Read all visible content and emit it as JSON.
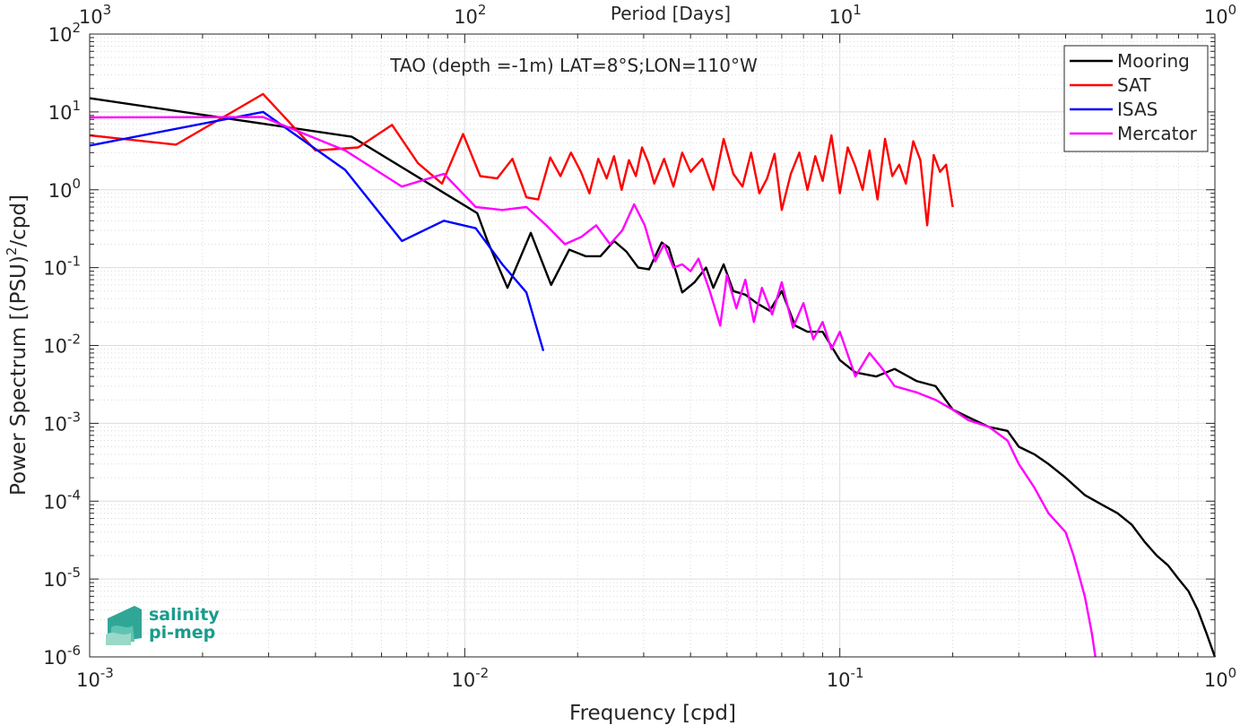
{
  "chart_data": {
    "type": "line",
    "title": "TAO (depth =-1m) LAT=8°S;LON=110°W",
    "xlabel": "Frequency [cpd]",
    "ylabel": "Power Spectrum [(PSU)^2/cpd]",
    "ylabel_main": "Power Spectrum [(PSU)",
    "ylabel_sup": "2",
    "ylabel_tail": "/cpd]",
    "top_xlabel": "Period [Days]",
    "xscale": "log",
    "yscale": "log",
    "xlim": [
      0.001,
      1
    ],
    "ylim": [
      1e-06,
      100
    ],
    "grid": true,
    "legend_position": "top-right",
    "x_ticks": [
      {
        "value": 0.001,
        "base": "10",
        "exp": "-3"
      },
      {
        "value": 0.01,
        "base": "10",
        "exp": "-2"
      },
      {
        "value": 0.1,
        "base": "10",
        "exp": "-1"
      },
      {
        "value": 1,
        "base": "10",
        "exp": "0"
      }
    ],
    "top_ticks": [
      {
        "value": 0.001,
        "base": "10",
        "exp": "3"
      },
      {
        "value": 0.01,
        "base": "10",
        "exp": "2"
      },
      {
        "value": 0.1,
        "base": "10",
        "exp": "1"
      },
      {
        "value": 1,
        "base": "10",
        "exp": "0"
      }
    ],
    "y_ticks": [
      {
        "value": 100,
        "base": "10",
        "exp": "2"
      },
      {
        "value": 10,
        "base": "10",
        "exp": "1"
      },
      {
        "value": 1,
        "base": "10",
        "exp": "0"
      },
      {
        "value": 0.1,
        "base": "10",
        "exp": "-1"
      },
      {
        "value": 0.01,
        "base": "10",
        "exp": "-2"
      },
      {
        "value": 0.001,
        "base": "10",
        "exp": "-3"
      },
      {
        "value": 0.0001,
        "base": "10",
        "exp": "-4"
      },
      {
        "value": 1e-05,
        "base": "10",
        "exp": "-5"
      },
      {
        "value": 1e-06,
        "base": "10",
        "exp": "-6"
      }
    ],
    "series": [
      {
        "name": "Mooring",
        "color": "#000000",
        "x": [
          0.001,
          0.005,
          0.0108,
          0.0115,
          0.013,
          0.015,
          0.017,
          0.019,
          0.021,
          0.023,
          0.025,
          0.027,
          0.029,
          0.031,
          0.0335,
          0.035,
          0.038,
          0.041,
          0.044,
          0.046,
          0.049,
          0.052,
          0.056,
          0.06,
          0.065,
          0.07,
          0.076,
          0.082,
          0.09,
          0.1,
          0.11,
          0.125,
          0.14,
          0.16,
          0.18,
          0.2,
          0.22,
          0.25,
          0.28,
          0.3,
          0.33,
          0.36,
          0.4,
          0.45,
          0.5,
          0.55,
          0.6,
          0.65,
          0.7,
          0.75,
          0.8,
          0.85,
          0.9,
          0.95,
          1.0
        ],
        "y": [
          15,
          4.8,
          0.5,
          0.22,
          0.055,
          0.28,
          0.06,
          0.17,
          0.14,
          0.14,
          0.22,
          0.16,
          0.1,
          0.095,
          0.21,
          0.18,
          0.048,
          0.065,
          0.1,
          0.055,
          0.11,
          0.05,
          0.045,
          0.035,
          0.028,
          0.05,
          0.018,
          0.015,
          0.015,
          0.0065,
          0.0045,
          0.004,
          0.005,
          0.0035,
          0.003,
          0.0015,
          0.0012,
          0.0009,
          0.0008,
          0.0005,
          0.0004,
          0.0003,
          0.0002,
          0.00012,
          9e-05,
          7e-05,
          5e-05,
          3e-05,
          2e-05,
          1.5e-05,
          1e-05,
          7e-06,
          4e-06,
          2e-06,
          1e-06
        ]
      },
      {
        "name": "SAT",
        "color": "#ff0000",
        "x": [
          0.001,
          0.0017,
          0.0029,
          0.004,
          0.0052,
          0.0064,
          0.0075,
          0.0087,
          0.0099,
          0.011,
          0.0122,
          0.0134,
          0.0146,
          0.0157,
          0.0169,
          0.018,
          0.0192,
          0.0204,
          0.0215,
          0.0227,
          0.0239,
          0.025,
          0.0262,
          0.0274,
          0.0286,
          0.0297,
          0.0309,
          0.032,
          0.034,
          0.036,
          0.038,
          0.04,
          0.043,
          0.046,
          0.049,
          0.052,
          0.055,
          0.058,
          0.061,
          0.064,
          0.067,
          0.07,
          0.074,
          0.078,
          0.082,
          0.086,
          0.09,
          0.095,
          0.1,
          0.105,
          0.11,
          0.115,
          0.12,
          0.126,
          0.132,
          0.138,
          0.144,
          0.15,
          0.157,
          0.164,
          0.171,
          0.178,
          0.185,
          0.192,
          0.2
        ],
        "y": [
          5,
          3.8,
          17,
          3.2,
          3.5,
          6.8,
          2.2,
          1.2,
          5.2,
          1.5,
          1.4,
          2.5,
          0.8,
          0.75,
          2.6,
          1.5,
          3.0,
          1.7,
          0.9,
          2.5,
          1.4,
          2.7,
          1.0,
          2.4,
          1.5,
          3.5,
          2.2,
          1.2,
          2.5,
          1.1,
          3.0,
          1.7,
          2.5,
          1.0,
          4.5,
          1.6,
          1.1,
          3.0,
          0.9,
          1.4,
          2.9,
          0.55,
          1.6,
          3.0,
          1.0,
          2.7,
          1.3,
          5.0,
          0.9,
          3.5,
          2.0,
          1.0,
          3.2,
          0.75,
          4.5,
          1.5,
          2.1,
          1.2,
          4.2,
          2.4,
          0.35,
          2.8,
          1.7,
          2.1,
          0.6
        ]
      },
      {
        "name": "ISAS",
        "color": "#0000ff",
        "x": [
          0.001,
          0.0029,
          0.0048,
          0.0068,
          0.0088,
          0.0107,
          0.0126,
          0.0146,
          0.0162
        ],
        "y": [
          3.7,
          10,
          1.8,
          0.22,
          0.4,
          0.32,
          0.11,
          0.048,
          0.0085
        ]
      },
      {
        "name": "Mercator",
        "color": "#ff00ff",
        "x": [
          0.001,
          0.0029,
          0.0048,
          0.0068,
          0.0088,
          0.0107,
          0.0126,
          0.0146,
          0.0165,
          0.0185,
          0.0205,
          0.0224,
          0.0244,
          0.0263,
          0.0283,
          0.0302,
          0.0322,
          0.034,
          0.036,
          0.038,
          0.04,
          0.042,
          0.045,
          0.048,
          0.05,
          0.053,
          0.056,
          0.059,
          0.062,
          0.066,
          0.07,
          0.075,
          0.08,
          0.085,
          0.09,
          0.095,
          0.1,
          0.11,
          0.12,
          0.13,
          0.14,
          0.16,
          0.18,
          0.2,
          0.22,
          0.25,
          0.28,
          0.3,
          0.33,
          0.36,
          0.4,
          0.42,
          0.45,
          0.47,
          0.48
        ],
        "y": [
          8.5,
          8.6,
          3.2,
          1.1,
          1.6,
          0.6,
          0.55,
          0.6,
          0.35,
          0.2,
          0.25,
          0.35,
          0.2,
          0.3,
          0.65,
          0.35,
          0.12,
          0.2,
          0.1,
          0.11,
          0.09,
          0.13,
          0.05,
          0.018,
          0.08,
          0.03,
          0.07,
          0.02,
          0.055,
          0.025,
          0.065,
          0.017,
          0.035,
          0.012,
          0.02,
          0.009,
          0.015,
          0.004,
          0.008,
          0.005,
          0.003,
          0.0025,
          0.002,
          0.0015,
          0.0011,
          0.0009,
          0.0006,
          0.0003,
          0.00015,
          7e-05,
          4e-05,
          2e-05,
          6e-06,
          2e-06,
          1e-06
        ]
      }
    ]
  },
  "logo": {
    "line1": "salinity",
    "line2": "pi-mep",
    "color": "#1a9c8c"
  }
}
